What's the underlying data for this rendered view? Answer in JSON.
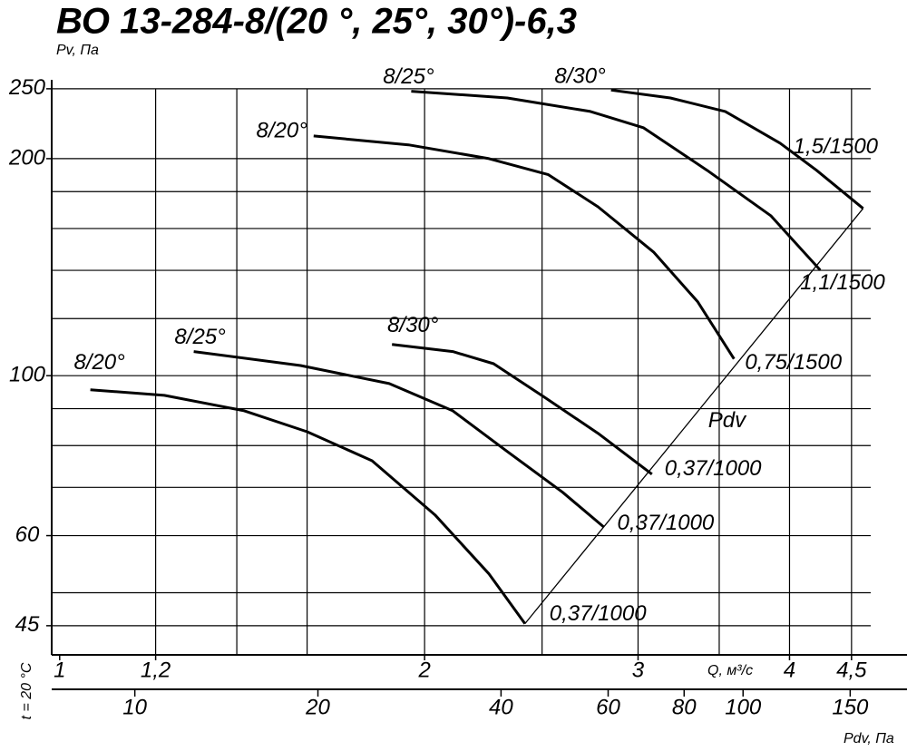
{
  "chart_data": {
    "type": "line",
    "title": "ВО 13-284-8/(20 °, 25°, 30°)-6,3",
    "y_label": "Pv, Па",
    "x_label": "Q, м³/с",
    "x2_label": "Pdv, Па",
    "note": "t = 20 °C",
    "xlog": true,
    "ylog": true,
    "xlim": [
      0.985,
      5
    ],
    "ylim": [
      41,
      258
    ],
    "xticks": [
      1,
      {
        "value": 1.2,
        "label": "1,2"
      },
      2,
      3,
      4,
      {
        "value": 4.5,
        "label": "4,5"
      }
    ],
    "xgrid": [
      1.2,
      1.4,
      1.6,
      2,
      2.5,
      3,
      3.5,
      4,
      4.5
    ],
    "yticks": [
      45,
      60,
      100,
      200,
      250
    ],
    "ygrid": [
      45,
      50,
      60,
      70,
      80,
      90,
      100,
      120,
      140,
      160,
      180,
      200,
      250
    ],
    "x2lim": [
      7.3,
      186
    ],
    "x2ticks": [
      10,
      20,
      40,
      60,
      80,
      100,
      150
    ],
    "series": [
      {
        "name": "8/20°",
        "color": "#000000",
        "end_label": "0,37/1000",
        "x": [
          1.06,
          1.22,
          1.42,
          1.6,
          1.81,
          2.04,
          2.26,
          2.42
        ],
        "values": [
          95.6,
          93.9,
          89.4,
          83.6,
          76.2,
          64.1,
          53.1,
          45.3
        ]
      },
      {
        "name": "8/25°",
        "color": "#000000",
        "end_label": "0,37/1000",
        "x": [
          1.29,
          1.58,
          1.87,
          2.11,
          2.34,
          2.6,
          2.81
        ],
        "values": [
          108,
          103.3,
          97.5,
          89.4,
          78.5,
          68.9,
          61.7
        ]
      },
      {
        "name": "8/30°",
        "color": "#000000",
        "end_label": "0,37/1000",
        "x": [
          1.88,
          2.11,
          2.28,
          2.51,
          2.78,
          3.08
        ],
        "values": [
          110.5,
          108,
          103.9,
          93.4,
          83.2,
          73.0
        ]
      },
      {
        "name": "8/20°",
        "color": "#000000",
        "end_label": "0,75/1500",
        "x": [
          1.62,
          1.94,
          2.26,
          2.53,
          2.78,
          3.09,
          3.36,
          3.6
        ],
        "values": [
          215,
          209,
          200,
          190,
          171.5,
          148.4,
          126.6,
          105.5
        ]
      },
      {
        "name": "8/25°",
        "color": "#000000",
        "end_label": "1,1/1500",
        "x": [
          1.95,
          2.34,
          2.74,
          3.03,
          3.42,
          3.86,
          4.24
        ],
        "values": [
          248,
          242.8,
          232.5,
          220.8,
          192.7,
          166.7,
          140.1
        ]
      },
      {
        "name": "8/30°",
        "color": "#000000",
        "end_label": "1,5/1500",
        "x": [
          2.85,
          3.19,
          3.54,
          3.93,
          4.21,
          4.6
        ],
        "values": [
          249,
          242.8,
          232.5,
          210.1,
          192.7,
          170.6
        ]
      },
      {
        "name": "Pdv",
        "color": "#000000",
        "x": [
          2.42,
          4.6
        ],
        "values": [
          45.3,
          170.6
        ]
      }
    ]
  }
}
